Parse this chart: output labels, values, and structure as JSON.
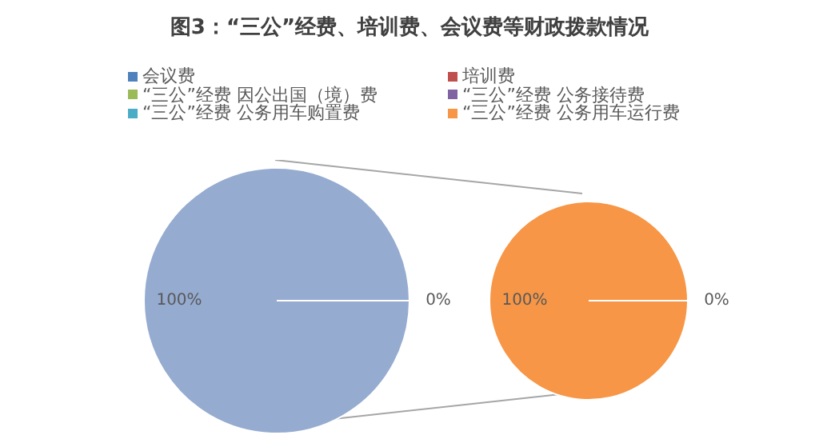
{
  "chart_data": [
    {
      "type": "pie",
      "title": "图3：“三公”经费、培训费、会议费等财政拨款情况",
      "categories": [
        null,
        null
      ],
      "values": [
        100,
        0
      ],
      "colors": [
        "#95abd0",
        "#4f81bd"
      ],
      "value_labels": [
        "100%",
        "0%"
      ]
    },
    {
      "type": "pie",
      "legend": "top",
      "categories": [
        "会议费",
        "培训费",
        "“三公”经费 因公出国（境）费",
        "“三公”经费 公务接待费",
        "“三公”经费 公务用车购置费",
        "“三公”经费 公务用车运行费"
      ],
      "values": [
        0,
        0,
        0,
        0,
        0,
        100
      ],
      "colors": [
        "#4f81bd",
        "#c0504d",
        "#9bbb59",
        "#8064a2",
        "#4bacc6",
        "#f79646"
      ],
      "value_labels": [
        null,
        null,
        null,
        null,
        "0%",
        "100%"
      ]
    }
  ]
}
